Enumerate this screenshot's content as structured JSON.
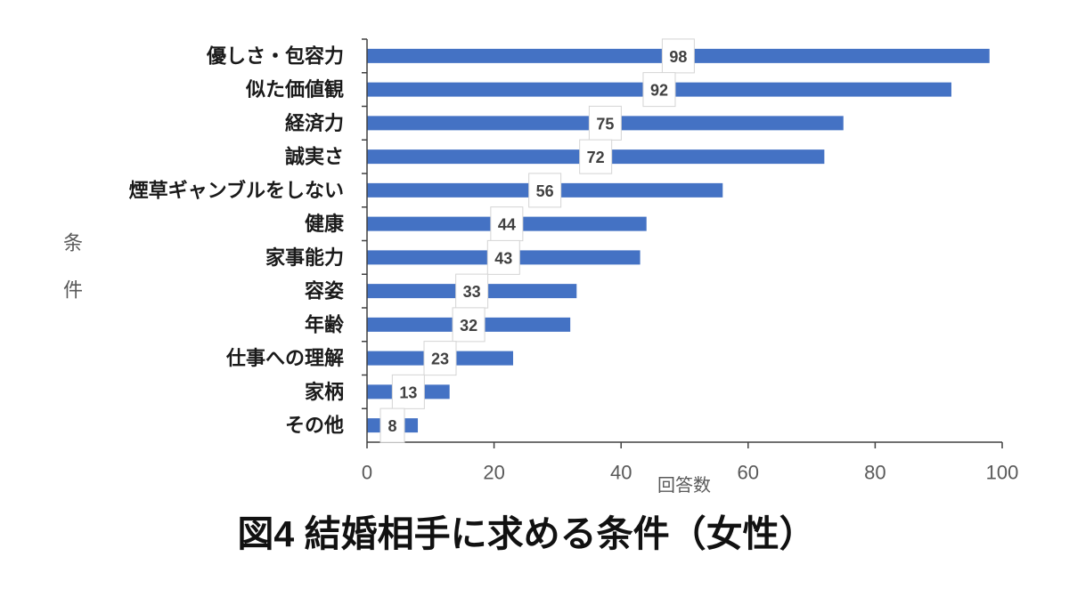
{
  "chart_data": {
    "type": "bar",
    "orientation": "horizontal",
    "title": "図4 結婚相手に求める条件（女性）",
    "xlabel": "回答数",
    "ylabel": "条件",
    "categories": [
      "優しさ・包容力",
      "似た価値観",
      "経済力",
      "誠実さ",
      "煙草ギャンブルをしない",
      "健康",
      "家事能力",
      "容姿",
      "年齢",
      "仕事への理解",
      "家柄",
      "その他"
    ],
    "values": [
      98,
      92,
      75,
      72,
      56,
      44,
      43,
      33,
      32,
      23,
      13,
      8
    ],
    "xlim": [
      0,
      100
    ],
    "xticks": [
      0,
      20,
      40,
      60,
      80,
      100
    ],
    "grid": false,
    "legend": "none",
    "data_labels": true,
    "bar_color": "#4472C4"
  }
}
